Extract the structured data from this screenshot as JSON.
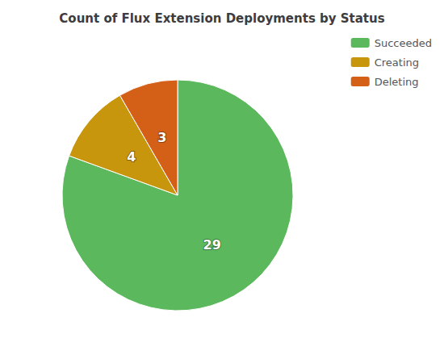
{
  "chart_data": {
    "type": "pie",
    "title": "Count of Flux Extension Deployments by Status",
    "categories": [
      "Succeeded",
      "Creating",
      "Deleting"
    ],
    "values": [
      29,
      4,
      3
    ],
    "colors": [
      "#5cb85c",
      "#c8960c",
      "#d45f17"
    ],
    "data_labels": true,
    "legend": "upper right"
  }
}
